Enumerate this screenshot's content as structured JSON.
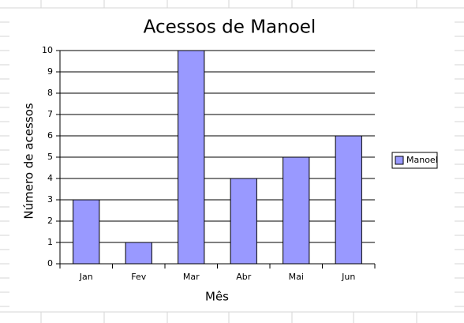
{
  "chart_data": {
    "type": "bar",
    "title": "Acessos de Manoel",
    "x_label": "Mês",
    "y_label": "Número de acessos",
    "categories": [
      "Jan",
      "Fev",
      "Mar",
      "Abr",
      "Mai",
      "Jun"
    ],
    "series": [
      {
        "name": "Manoel",
        "color": "#9999ff",
        "values": [
          3,
          1,
          10,
          4,
          5,
          6
        ]
      }
    ],
    "ylim": [
      0,
      10
    ],
    "yticks": [
      0,
      1,
      2,
      3,
      4,
      5,
      6,
      7,
      8,
      9,
      10
    ],
    "grid": true,
    "legend": "right"
  }
}
